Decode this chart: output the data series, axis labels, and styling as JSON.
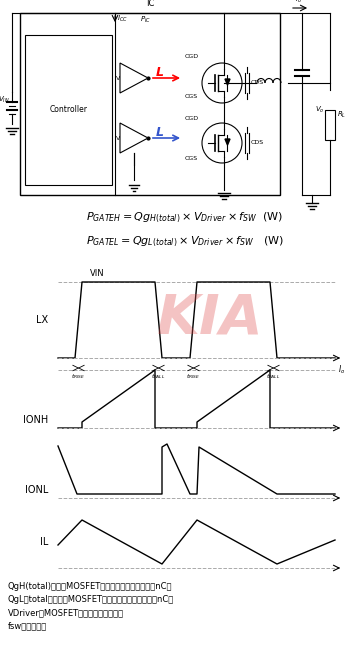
{
  "bg_color": "#ffffff",
  "fig_width": 3.64,
  "fig_height": 6.58,
  "dpi": 100,
  "formula1": "$P_{GATEH} = Qg_{H(total)} \\times V_{Driver} \\times f_{SW}$  (W)",
  "formula2": "$P_{GATEL} = Qg_{L(total)} \\times V_{Driver} \\times f_{SW}$   (W)",
  "kia_color": "#e05555",
  "line_color": "#000000",
  "dash_color": "#aaaaaa",
  "note1": "QgH(total)：高边MOSFET的栅极电荷总量（单位：nC）",
  "note2": "QgL（total）：低边MOSFET的栅极电荷总量（单位：nC）",
  "note3": "VDriver：MOSFET驱动电路的电源电压",
  "note4": "fsw：工作频率"
}
